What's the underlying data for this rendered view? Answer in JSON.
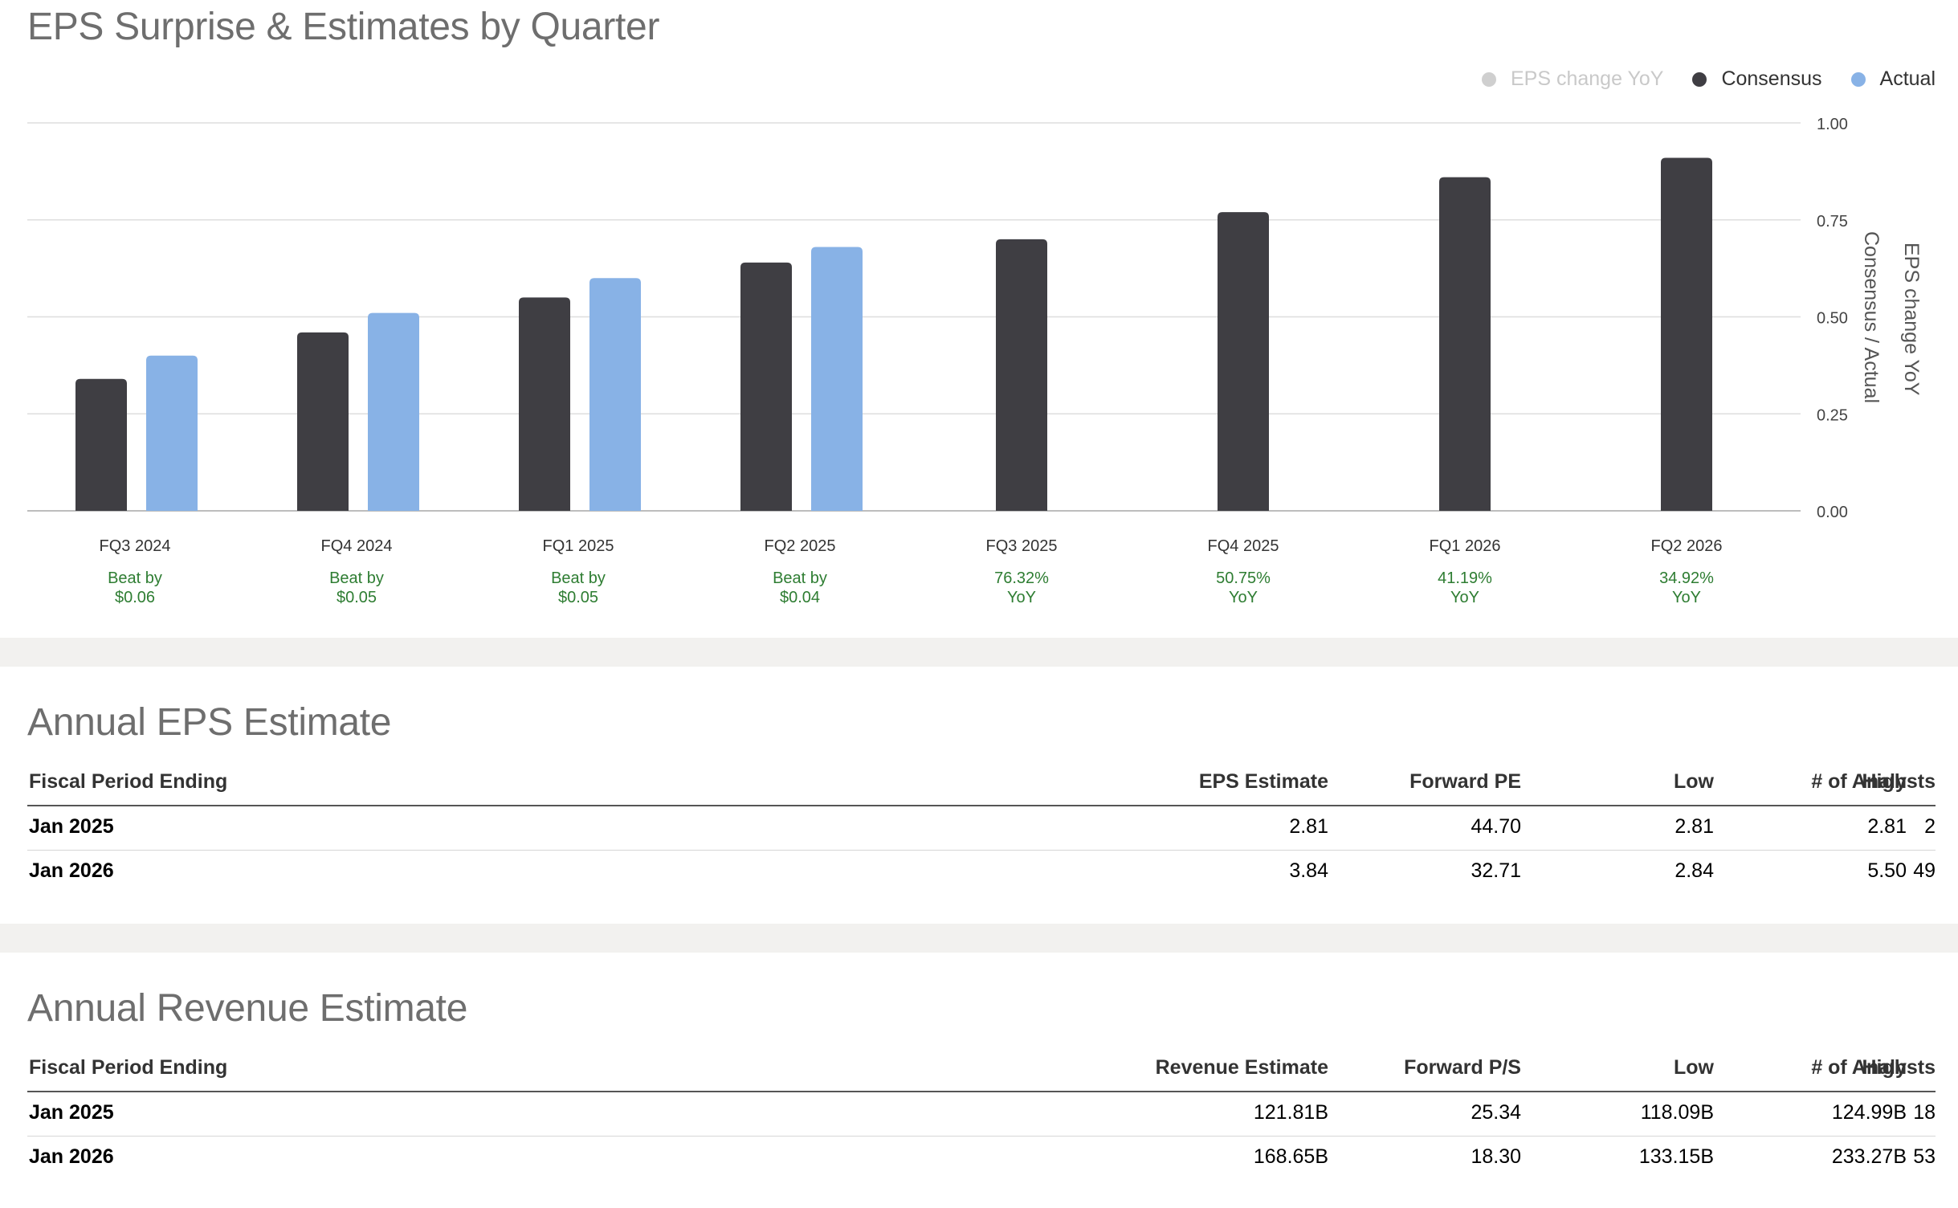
{
  "eps_chart": {
    "title": "EPS Surprise & Estimates by Quarter",
    "legend": [
      {
        "label": "EPS change YoY",
        "color": "#cfcfcf",
        "state": "muted"
      },
      {
        "label": "Consensus",
        "color": "#3f3e43",
        "state": "active"
      },
      {
        "label": "Actual",
        "color": "#88b2e6",
        "state": "active"
      }
    ],
    "y_axis_right_label": "Consensus / Actual",
    "y_axis_far_right_label": "EPS change YoY"
  },
  "chart_data": {
    "type": "bar",
    "categories": [
      "FQ3 2024",
      "FQ4 2024",
      "FQ1 2025",
      "FQ2 2025",
      "FQ3 2025",
      "FQ4 2025",
      "FQ1 2026",
      "FQ2 2026"
    ],
    "series": [
      {
        "name": "Consensus",
        "color": "#3f3e43",
        "values": [
          0.34,
          0.46,
          0.55,
          0.64,
          0.7,
          0.77,
          0.86,
          0.91
        ]
      },
      {
        "name": "Actual",
        "color": "#88b2e6",
        "values": [
          0.4,
          0.51,
          0.6,
          0.68,
          null,
          null,
          null,
          null
        ]
      }
    ],
    "annotations": [
      [
        "Beat by",
        "$0.06"
      ],
      [
        "Beat by",
        "$0.05"
      ],
      [
        "Beat by",
        "$0.05"
      ],
      [
        "Beat by",
        "$0.04"
      ],
      [
        "76.32%",
        "YoY"
      ],
      [
        "50.75%",
        "YoY"
      ],
      [
        "41.19%",
        "YoY"
      ],
      [
        "34.92%",
        "YoY"
      ]
    ],
    "y_ticks": [
      "0.00",
      "0.25",
      "0.50",
      "0.75",
      "1.00"
    ],
    "ylim": [
      0,
      1
    ],
    "grid": true,
    "legend_position": "top-right",
    "annotation_color": "#2e7d32"
  },
  "annual_eps": {
    "title": "Annual EPS Estimate",
    "headers": [
      "Fiscal Period Ending",
      "EPS Estimate",
      "Forward PE",
      "Low",
      "High",
      "# of Analysts"
    ],
    "rows": [
      [
        "Jan 2025",
        "2.81",
        "44.70",
        "2.81",
        "2.81",
        "2"
      ],
      [
        "Jan 2026",
        "3.84",
        "32.71",
        "2.84",
        "5.50",
        "49"
      ]
    ]
  },
  "annual_revenue": {
    "title": "Annual Revenue Estimate",
    "headers": [
      "Fiscal Period Ending",
      "Revenue Estimate",
      "Forward P/S",
      "Low",
      "High",
      "# of Analysts"
    ],
    "rows": [
      [
        "Jan 2025",
        "121.81B",
        "25.34",
        "118.09B",
        "124.99B",
        "18"
      ],
      [
        "Jan 2026",
        "168.65B",
        "18.30",
        "133.15B",
        "233.27B",
        "53"
      ]
    ]
  }
}
